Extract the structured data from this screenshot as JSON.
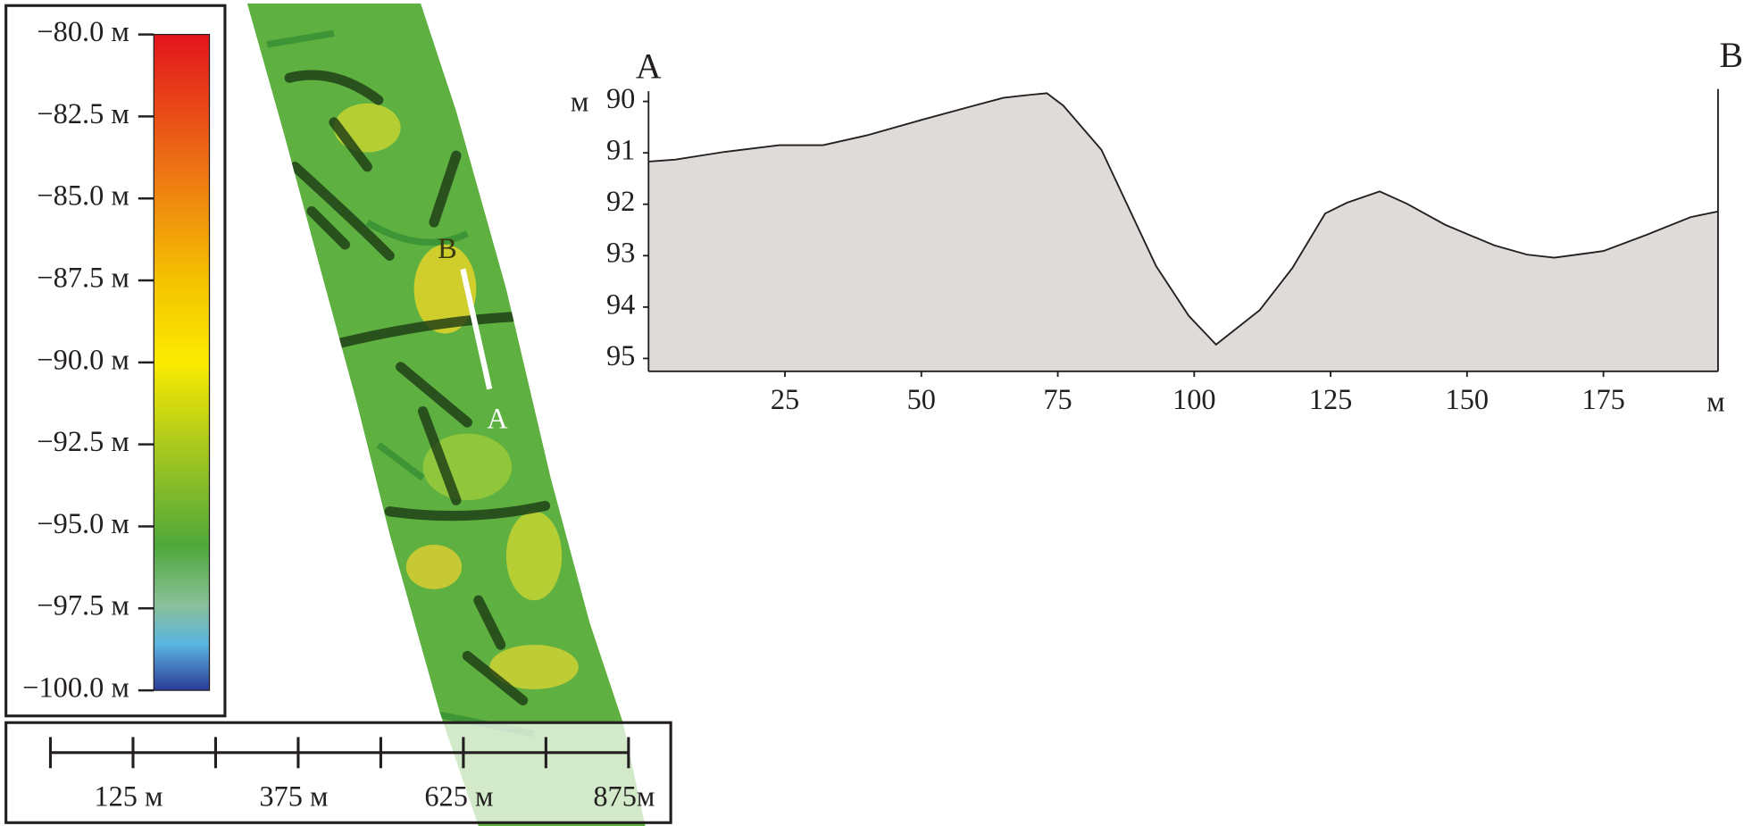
{
  "colorbar": {
    "clim": [
      -100,
      -80
    ],
    "ticks": [
      {
        "value": -80,
        "label": "−80.0 м"
      },
      {
        "value": -82.5,
        "label": "−82.5 м"
      },
      {
        "value": -85,
        "label": "−85.0 м"
      },
      {
        "value": -87.5,
        "label": "−87.5 м"
      },
      {
        "value": -90,
        "label": "−90.0 м"
      },
      {
        "value": -92.5,
        "label": "−92.5 м"
      },
      {
        "value": -95,
        "label": "−95.0 м"
      },
      {
        "value": -97.5,
        "label": "−97.5 м"
      },
      {
        "value": -100,
        "label": "−100.0 м"
      }
    ]
  },
  "map": {
    "point_b": "B",
    "point_a": "A"
  },
  "scale_bar": {
    "range": [
      0,
      875
    ],
    "ticks": [
      0,
      125,
      250,
      375,
      500,
      625,
      750,
      875
    ],
    "labels": [
      {
        "value": 125,
        "label": "125 м"
      },
      {
        "value": 375,
        "label": "375 м"
      },
      {
        "value": 625,
        "label": "625 м"
      },
      {
        "value": 875,
        "label": "875м"
      }
    ]
  },
  "chart_data": {
    "type": "area",
    "start_label": "A",
    "end_label": "B",
    "x_label": "м",
    "y_label": "м",
    "color": "#dedbd9",
    "x": [
      0,
      5,
      14,
      24,
      32,
      40,
      50,
      59,
      65,
      70,
      73,
      76,
      83,
      93,
      99,
      104,
      112,
      118,
      124,
      128,
      134,
      139,
      146,
      155,
      161,
      166,
      175,
      183,
      191,
      196
    ],
    "values": [
      91.17,
      91.13,
      90.98,
      90.85,
      90.85,
      90.66,
      90.36,
      90.1,
      89.93,
      89.87,
      89.84,
      90.08,
      90.94,
      93.2,
      94.17,
      94.73,
      94.06,
      93.24,
      92.18,
      91.97,
      91.75,
      91.99,
      92.4,
      92.8,
      92.98,
      93.04,
      92.91,
      92.59,
      92.25,
      92.14
    ],
    "xlim": [
      0,
      196
    ],
    "ylim": [
      95.25,
      89.8
    ],
    "xticks": [
      25,
      50,
      75,
      100,
      125,
      150,
      175
    ],
    "yticks": [
      90,
      91,
      92,
      93,
      94,
      95
    ]
  }
}
